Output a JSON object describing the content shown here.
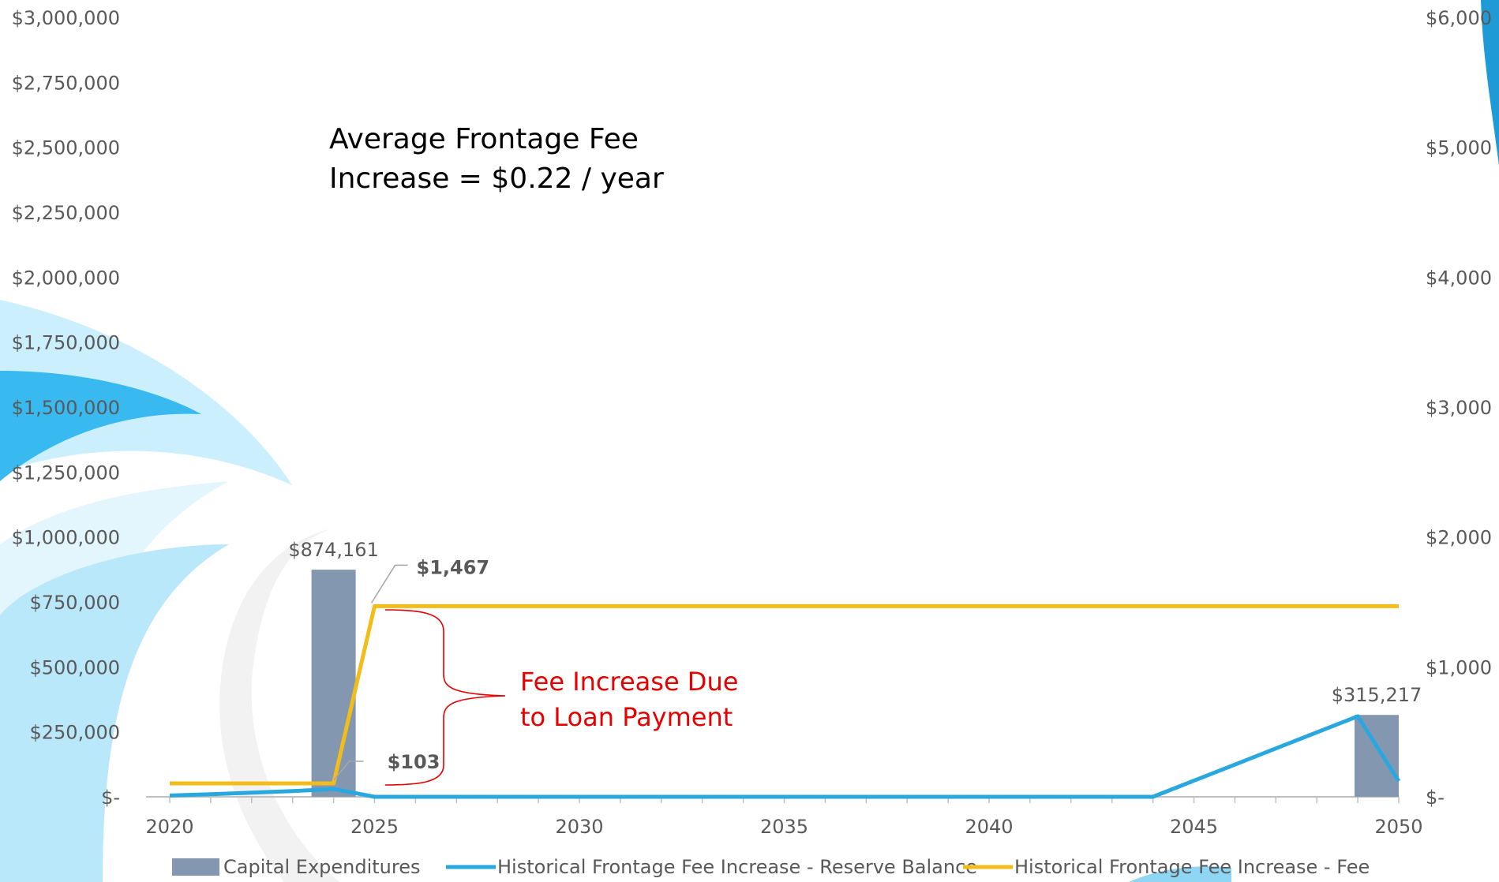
{
  "colors": {
    "bar": "#8497B0",
    "reserve_line": "#29A8E0",
    "fee_line": "#F2BD1B",
    "fee_label": "#C9A227",
    "annotation_red": "#E60000",
    "axis": "#BFBFBF",
    "tick_text": "#595959"
  },
  "chart_data": {
    "type": "bar",
    "x_range": [
      2020,
      2050
    ],
    "x_ticks": [
      2020,
      2025,
      2030,
      2035,
      2040,
      2045,
      2050
    ],
    "x_tick_labels": [
      "2020",
      "2025",
      "2030",
      "2035",
      "2040",
      "2045",
      "2050"
    ],
    "y_left": {
      "range": [
        0,
        3000000
      ],
      "ticks": [
        0,
        250000,
        500000,
        750000,
        1000000,
        1250000,
        1500000,
        1750000,
        2000000,
        2250000,
        2500000,
        2750000,
        3000000
      ],
      "tick_labels": [
        "$-",
        "$250,000",
        "$500,000",
        "$750,000",
        "$1,000,000",
        "$1,250,000",
        "$1,500,000",
        "$1,750,000",
        "$2,000,000",
        "$2,250,000",
        "$2,500,000",
        "$2,750,000",
        "$3,000,000"
      ]
    },
    "y_right": {
      "range": [
        0,
        6000
      ],
      "ticks": [
        0,
        1000,
        2000,
        3000,
        4000,
        5000,
        6000
      ],
      "tick_labels": [
        "$-",
        "$1,000",
        "$2,000",
        "$3,000",
        "$4,000",
        "$5,000",
        "$6,000"
      ]
    },
    "series": [
      {
        "name": "Capital Expenditures",
        "type": "bar",
        "axis": "left",
        "points": [
          {
            "x": 2024,
            "y": 874161,
            "label": "$874,161"
          },
          {
            "x": 2050,
            "y": 315217,
            "label": "$315,217"
          }
        ]
      },
      {
        "name": "Historical Frontage Fee Increase - Reserve Balance",
        "type": "line",
        "axis": "left",
        "x": [
          2020,
          2021,
          2022,
          2023,
          2024,
          2025,
          2030,
          2035,
          2040,
          2044,
          2045,
          2046,
          2047,
          2048,
          2049,
          2050
        ],
        "y": [
          5000,
          10000,
          16000,
          22000,
          30000,
          0,
          0,
          0,
          0,
          0,
          62000,
          124000,
          186000,
          248000,
          310000,
          60000
        ]
      },
      {
        "name": "Historical Frontage Fee Increase - Fee",
        "type": "line",
        "axis": "right",
        "x": [
          2020,
          2021,
          2022,
          2023,
          2024,
          2025,
          2030,
          2035,
          2040,
          2045,
          2050
        ],
        "y": [
          103,
          103,
          103,
          103,
          103,
          1467,
          1467,
          1467,
          1467,
          1467,
          1467
        ],
        "point_labels": [
          {
            "x": 2024,
            "y": 103,
            "label": "$103"
          },
          {
            "x": 2025,
            "y": 1467,
            "label": "$1,467"
          }
        ]
      }
    ],
    "annotations": {
      "avg_fee_line1": "Average Frontage Fee",
      "avg_fee_line2": "Increase = $0.22 / year",
      "fee_increase_line1": "Fee Increase Due",
      "fee_increase_line2": "to Loan Payment"
    },
    "legend_position": "bottom",
    "legend": [
      "Capital Expenditures",
      "Historical Frontage Fee Increase - Reserve Balance",
      "Historical Frontage Fee Increase - Fee"
    ]
  }
}
